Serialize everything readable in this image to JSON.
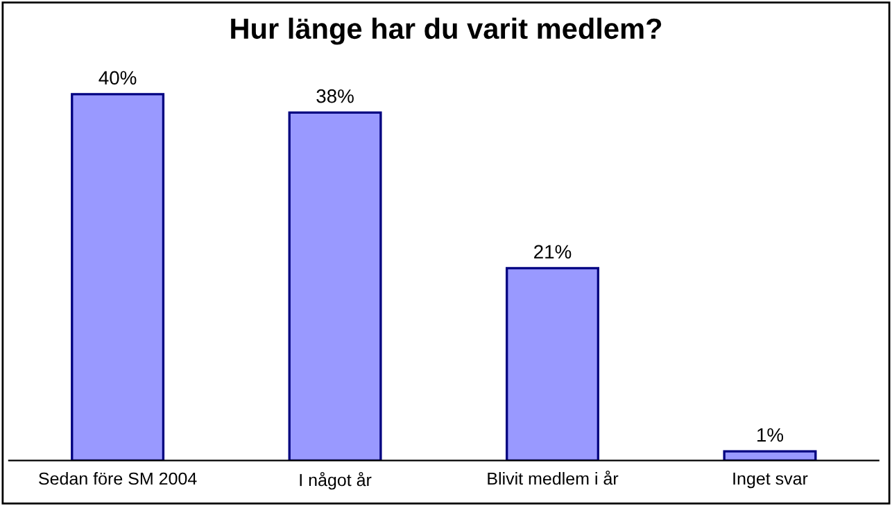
{
  "chart_data": {
    "type": "bar",
    "title": "Hur länge har du varit medlem?",
    "categories": [
      "Sedan före SM 2004",
      "I något år",
      "Blivit medlem i år",
      "Inget svar"
    ],
    "values": [
      40,
      38,
      21,
      1
    ],
    "value_labels": [
      "40%",
      "38%",
      "21%",
      "1%"
    ],
    "color": "#9999ff",
    "tick_labels": "x",
    "grid": false,
    "legend": false
  }
}
